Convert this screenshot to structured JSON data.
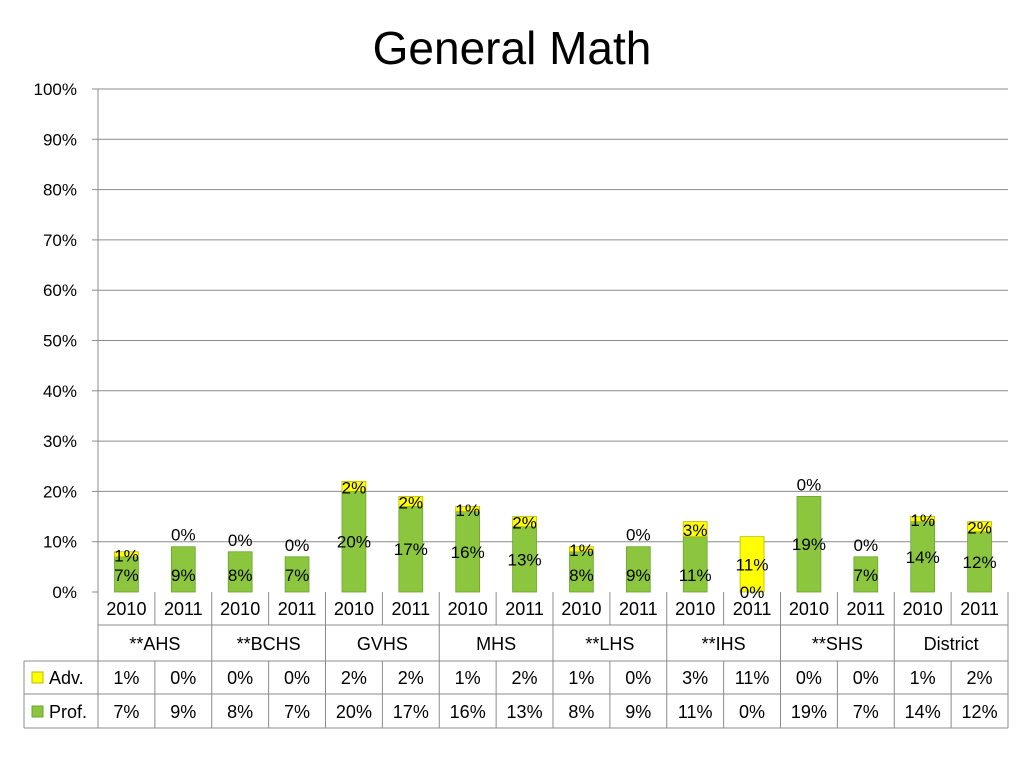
{
  "chart_data": {
    "type": "bar",
    "stacked": true,
    "title": "General Math",
    "groups": [
      {
        "name": "**AHS",
        "years": [
          "2010",
          "2011"
        ]
      },
      {
        "name": "**BCHS",
        "years": [
          "2010",
          "2011"
        ]
      },
      {
        "name": "GVHS",
        "years": [
          "2010",
          "2011"
        ]
      },
      {
        "name": "MHS",
        "years": [
          "2010",
          "2011"
        ]
      },
      {
        "name": "**LHS",
        "years": [
          "2010",
          "2011"
        ]
      },
      {
        "name": "**IHS",
        "years": [
          "2010",
          "2011"
        ]
      },
      {
        "name": "**SHS",
        "years": [
          "2010",
          "2011"
        ]
      },
      {
        "name": "District",
        "years": [
          "2010",
          "2011"
        ]
      }
    ],
    "series": [
      {
        "name": "Adv.",
        "color": "#ffff00",
        "values": [
          1,
          0,
          0,
          0,
          2,
          2,
          1,
          2,
          1,
          0,
          3,
          11,
          0,
          0,
          1,
          2
        ],
        "labels": [
          "1%",
          "0%",
          "0%",
          "0%",
          "2%",
          "2%",
          "1%",
          "2%",
          "1%",
          "0%",
          "3%",
          "11%",
          "0%",
          "0%",
          "1%",
          "2%"
        ]
      },
      {
        "name": "Prof.",
        "color": "#8bc63e",
        "values": [
          7,
          9,
          8,
          7,
          20,
          17,
          16,
          13,
          8,
          9,
          11,
          0,
          19,
          7,
          14,
          12
        ],
        "labels": [
          "7%",
          "9%",
          "8%",
          "7%",
          "20%",
          "17%",
          "16%",
          "13%",
          "8%",
          "9%",
          "11%",
          "0%",
          "19%",
          "7%",
          "14%",
          "12%"
        ]
      }
    ],
    "stack_order": [
      "Prof.",
      "Adv."
    ],
    "ylim": [
      0,
      100
    ],
    "yticks": [
      "0%",
      "10%",
      "20%",
      "30%",
      "40%",
      "50%",
      "60%",
      "70%",
      "80%",
      "90%",
      "100%"
    ],
    "grid": true,
    "legend": "data-table"
  }
}
